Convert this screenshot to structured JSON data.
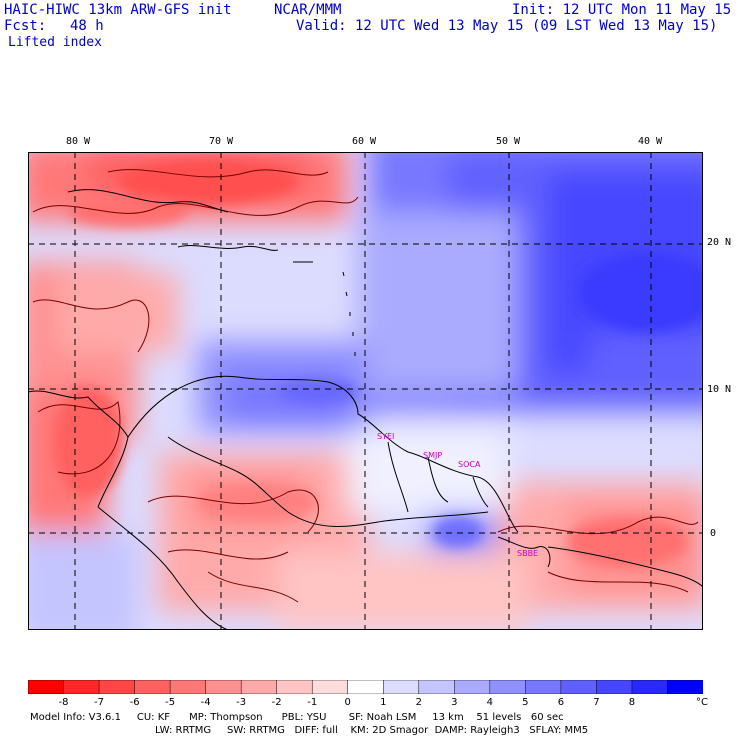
{
  "header": {
    "model": "HAIC-HIWC 13km ARW-GFS init",
    "org": "NCAR/MMM",
    "init": "Init: 12 UTC Mon 11 May 15",
    "fcst_label": "Fcst:",
    "fcst_value": "48 h",
    "valid": "Valid: 12 UTC Wed 13 May 15 (09 LST Wed 13 May 15)",
    "field": "Lifted index"
  },
  "map": {
    "lon_labels": [
      "80 W",
      "70 W",
      "60 W",
      "50 W",
      "40 W"
    ],
    "lat_labels": [
      "20 N",
      "10 N",
      "0"
    ],
    "stations": [
      "SYEI",
      "SMJP",
      "SOCA",
      "SBBE"
    ],
    "colors": {
      "border": "#000000",
      "contour": "#7a0000",
      "grid": "#000000",
      "station": "#cc00cc"
    }
  },
  "colorbar": {
    "labels": [
      "-8",
      "-7",
      "-6",
      "-5",
      "-4",
      "-3",
      "-2",
      "-1",
      "0",
      "1",
      "2",
      "3",
      "4",
      "5",
      "6",
      "7",
      "8"
    ],
    "unit": "°C",
    "colors": [
      "#ff0000",
      "#ff2828",
      "#ff4646",
      "#ff6060",
      "#ff7878",
      "#ff9090",
      "#ffaaaa",
      "#ffc4c4",
      "#ffdcdc",
      "#ffffff",
      "#dcdcff",
      "#c4c4ff",
      "#aaaaff",
      "#9090ff",
      "#7878ff",
      "#6060ff",
      "#4646ff",
      "#2828ff",
      "#0000ff"
    ]
  },
  "model_info": {
    "line1": "Model Info: V3.6.1     CU: KF      MP: Thompson      PBL: YSU       SF: Noah LSM     13 km    51 levels   60 sec",
    "line2": "LW: RRTMG     SW: RRTMG   DIFF: full    KM: 2D Smagor  DAMP: Rayleigh3   SFLAY: MM5"
  }
}
